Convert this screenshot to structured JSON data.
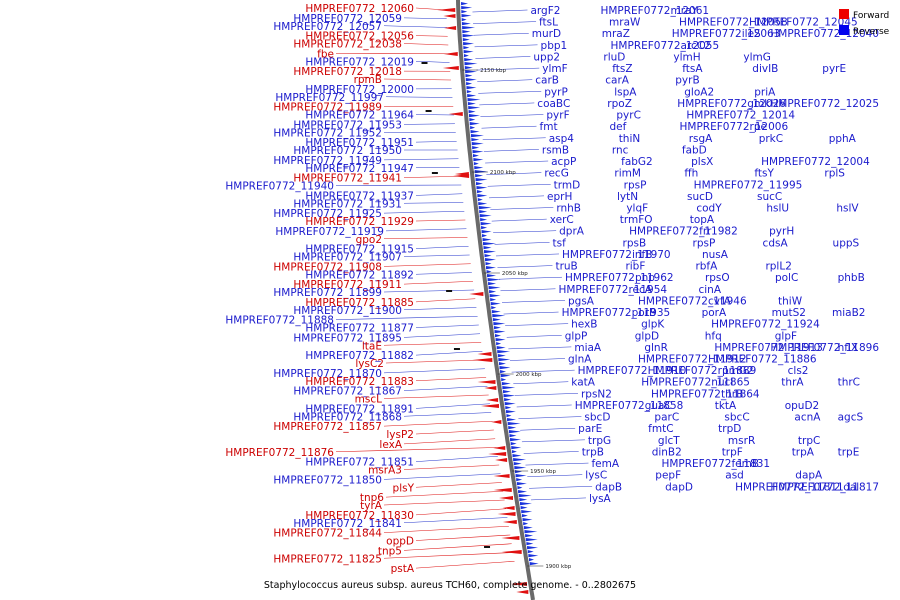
{
  "caption": "Staphylococcus aureus subsp. aureus TCH60, complete genome. - 0..2802675",
  "legend": {
    "items": [
      {
        "label": "Forward",
        "color": "#ee0000"
      },
      {
        "label": "Reverse",
        "color": "#0000ee"
      }
    ]
  },
  "ticks": [
    "2150 kbp",
    "2100 kbp",
    "2050 kbp",
    "2000 kbp",
    "1950 kbp",
    "1900 kbp"
  ],
  "left_labels": [
    {
      "text": "HMPREF0772_12060",
      "strand": "forward"
    },
    {
      "text": "HMPREF0772_12059",
      "strand": "reverse"
    },
    {
      "text": "HMPREF0772_12057",
      "strand": "reverse"
    },
    {
      "text": "HMPREF0772_12056",
      "strand": "forward"
    },
    {
      "text": "HMPREF0772_12038",
      "strand": "forward"
    },
    {
      "text": "fbe",
      "strand": "forward"
    },
    {
      "text": "HMPREF0772_12019",
      "strand": "reverse"
    },
    {
      "text": "HMPREF0772_12018",
      "strand": "forward"
    },
    {
      "text": "rpmB",
      "strand": "forward"
    },
    {
      "text": "HMPREF0772_12000",
      "strand": "reverse"
    },
    {
      "text": "HMPREF0772_11997",
      "strand": "reverse"
    },
    {
      "text": "HMPREF0772_11989",
      "strand": "forward"
    },
    {
      "text": "HMPREF0772_11964",
      "strand": "reverse"
    },
    {
      "text": "HMPREF0772_11953",
      "strand": "reverse"
    },
    {
      "text": "HMPREF0772_11952",
      "strand": "reverse"
    },
    {
      "text": "HMPREF0772_11951",
      "strand": "reverse"
    },
    {
      "text": "HMPREF0772_11950",
      "strand": "reverse"
    },
    {
      "text": "HMPREF0772_11949",
      "strand": "reverse"
    },
    {
      "text": "HMPREF0772_11947",
      "strand": "reverse"
    },
    {
      "text": "HMPREF0772_11941",
      "strand": "forward"
    },
    {
      "text": "HMPREF0772_11940",
      "strand": "reverse"
    },
    {
      "text": "HMPREF0772_11937",
      "strand": "reverse"
    },
    {
      "text": "HMPREF0772_11931",
      "strand": "reverse"
    },
    {
      "text": "HMPREF0772_11925",
      "strand": "reverse"
    },
    {
      "text": "HMPREF0772_11929",
      "strand": "forward"
    },
    {
      "text": "HMPREF0772_11919",
      "strand": "reverse"
    },
    {
      "text": "gpo2",
      "strand": "forward"
    },
    {
      "text": "HMPREF0772_11915",
      "strand": "reverse"
    },
    {
      "text": "HMPREF0772_11907",
      "strand": "reverse"
    },
    {
      "text": "HMPREF0772_11908",
      "strand": "forward"
    },
    {
      "text": "HMPREF0772_11892",
      "strand": "reverse"
    },
    {
      "text": "HMPREF0772_11911",
      "strand": "forward"
    },
    {
      "text": "HMPREF0772_11899",
      "strand": "reverse"
    },
    {
      "text": "HMPREF0772_11885",
      "strand": "forward"
    },
    {
      "text": "HMPREF0772_11900",
      "strand": "reverse"
    },
    {
      "text": "HMPREF0772_11888",
      "strand": "reverse"
    },
    {
      "text": "HMPREF0772_11877",
      "strand": "reverse"
    },
    {
      "text": "HMPREF0772_11895",
      "strand": "reverse"
    },
    {
      "text": "ltaE",
      "strand": "forward"
    },
    {
      "text": "HMPREF0772_11882",
      "strand": "reverse"
    },
    {
      "text": "lysC2",
      "strand": "forward"
    },
    {
      "text": "HMPREF0772_11870",
      "strand": "reverse"
    },
    {
      "text": "HMPREF0772_11883",
      "strand": "forward"
    },
    {
      "text": "HMPREF0772_11867",
      "strand": "reverse"
    },
    {
      "text": "mscL",
      "strand": "forward"
    },
    {
      "text": "HMPREF0772_11891",
      "strand": "reverse"
    },
    {
      "text": "HMPREF0772_11868",
      "strand": "reverse"
    },
    {
      "text": "HMPREF0772_11857",
      "strand": "forward"
    },
    {
      "text": "lysP2",
      "strand": "forward"
    },
    {
      "text": "lexA",
      "strand": "forward"
    },
    {
      "text": "HMPREF0772_11876",
      "strand": "forward"
    },
    {
      "text": "HMPREF0772_11851",
      "strand": "reverse"
    },
    {
      "text": "msrA3",
      "strand": "forward"
    },
    {
      "text": "HMPREF0772_11850",
      "strand": "reverse"
    },
    {
      "text": "plsY",
      "strand": "forward"
    },
    {
      "text": "tnp6",
      "strand": "forward"
    },
    {
      "text": "tyrA",
      "strand": "forward"
    },
    {
      "text": "HMPREF0772_11830",
      "strand": "forward"
    },
    {
      "text": "HMPREF0772_11841",
      "strand": "reverse"
    },
    {
      "text": "HMPREF0772_11844",
      "strand": "forward"
    },
    {
      "text": "oppD",
      "strand": "forward"
    },
    {
      "text": "tnp5",
      "strand": "forward"
    },
    {
      "text": "HMPREF0772_11825",
      "strand": "forward"
    },
    {
      "text": "pstA",
      "strand": "forward"
    }
  ],
  "right_labels": [
    "argF2",
    "HMPREF0772_12061",
    "mraY",
    "ftsL",
    "mraW",
    "HMPREF0772_12058",
    "HMPREF0772_12045",
    "murD",
    "mraZ",
    "HMPREF0772_12063",
    "ileS",
    "HMPREF0772_12040",
    "pbp1",
    "HMPREF0772_12055",
    "arcC2",
    "upp2",
    "rluD",
    "ylmH",
    "ylmG",
    "ylmF",
    "ftsZ",
    "ftsA",
    "divIB",
    "pyrE",
    "carB",
    "carA",
    "pyrB",
    "pyrP",
    "lspA",
    "gloA2",
    "priA",
    "coaBC",
    "rpoZ",
    "HMPREF0772_12026",
    "gmk",
    "HMPREF0772_12025",
    "pyrF",
    "pyrC",
    "HMPREF0772_12014",
    "fmt",
    "def",
    "HMPREF0772_12006",
    "rpe",
    "asp4",
    "thiN",
    "rsgA",
    "prkC",
    "pphA",
    "rsmB",
    "rnc",
    "fabD",
    "acpP",
    "fabG2",
    "plsX",
    "HMPREF0772_12004",
    "recG",
    "rimM",
    "ffh",
    "ftsY",
    "rplS",
    "trmD",
    "rpsP",
    "HMPREF0772_11995",
    "eprH",
    "lytN",
    "sucD",
    "sucC",
    "rnhB",
    "ylqF",
    "codY",
    "hslU",
    "hslV",
    "xerC",
    "trmFO",
    "topA",
    "dprA",
    "HMPREF0772_11982",
    "frr",
    "pyrH",
    "tsf",
    "rpsB",
    "rpsP",
    "cdsA",
    "uppS",
    "HMPREF0772_11970",
    "infB",
    "nusA",
    "truB",
    "ribF",
    "rbfA",
    "rplL2",
    "HMPREF0772_11962",
    "pnp",
    "rpsO",
    "polC",
    "phbB",
    "HMPREF0772_11954",
    "recA",
    "cinA",
    "pgsA",
    "HMPREF0772_11946",
    "cvfA",
    "thiW",
    "HMPREF0772_11935",
    "porB",
    "porA",
    "mutS2",
    "miaB2",
    "hexB",
    "glpK",
    "HMPREF0772_11924",
    "glpP",
    "glpD",
    "hfq",
    "glpF",
    "miaA",
    "glnR",
    "HMPREF0772_11913",
    "HMPREF0772_11896",
    "hflX",
    "glnA",
    "HMPREF0772_11912",
    "HMPREF0772_11886",
    "HMPREF0772_11910",
    "HMPREF0772_11889",
    "rpmG2",
    "cls2",
    "katA",
    "HMPREF0772_11865",
    "nucI",
    "thrA",
    "thrC",
    "rpsN2",
    "HMPREF0772_11864",
    "thrB",
    "HMPREF0772_11858",
    "guaC",
    "tktA",
    "opuD2",
    "sbcD",
    "parC",
    "sbcC",
    "acnA",
    "agcS",
    "parE",
    "fmtC",
    "trpD",
    "trpG",
    "glcT",
    "msrR",
    "trpC",
    "trpB",
    "dinB2",
    "trpF",
    "trpA",
    "trpE",
    "femA",
    "HMPREF0772_11831",
    "femB",
    "lysC",
    "pepF",
    "asd",
    "dapA",
    "dapB",
    "dapD",
    "HMPREF0772_11811",
    "HMPREF0772_11817",
    "dal",
    "lysA"
  ]
}
